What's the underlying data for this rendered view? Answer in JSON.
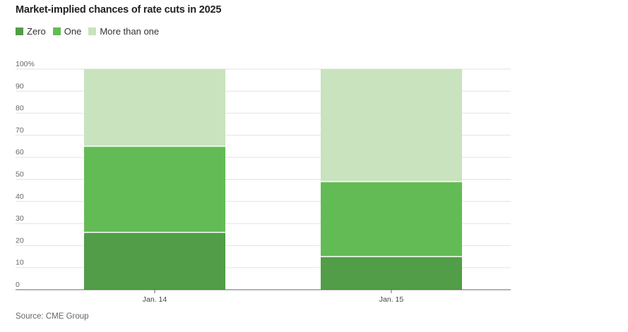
{
  "colors": {
    "Zero": "#529d47",
    "One": "#63bb55",
    "More than one": "#c8e3bd",
    "grid": "#e2e2e2",
    "axis": "#666666"
  },
  "chart_data": {
    "type": "bar",
    "stacked": true,
    "title": "Market-implied chances of rate cuts in 2025",
    "categories": [
      "Jan. 14",
      "Jan. 15"
    ],
    "series": [
      {
        "name": "Zero",
        "values": [
          26,
          15
        ]
      },
      {
        "name": "One",
        "values": [
          39,
          34
        ]
      },
      {
        "name": "More than one",
        "values": [
          35,
          51
        ]
      }
    ],
    "ylim": [
      0,
      100
    ],
    "yticks": [
      "0",
      "10",
      "20",
      "30",
      "40",
      "50",
      "60",
      "70",
      "80",
      "90",
      "100%"
    ],
    "grid": true,
    "legend": "top-left",
    "source": "Source: CME Group"
  }
}
